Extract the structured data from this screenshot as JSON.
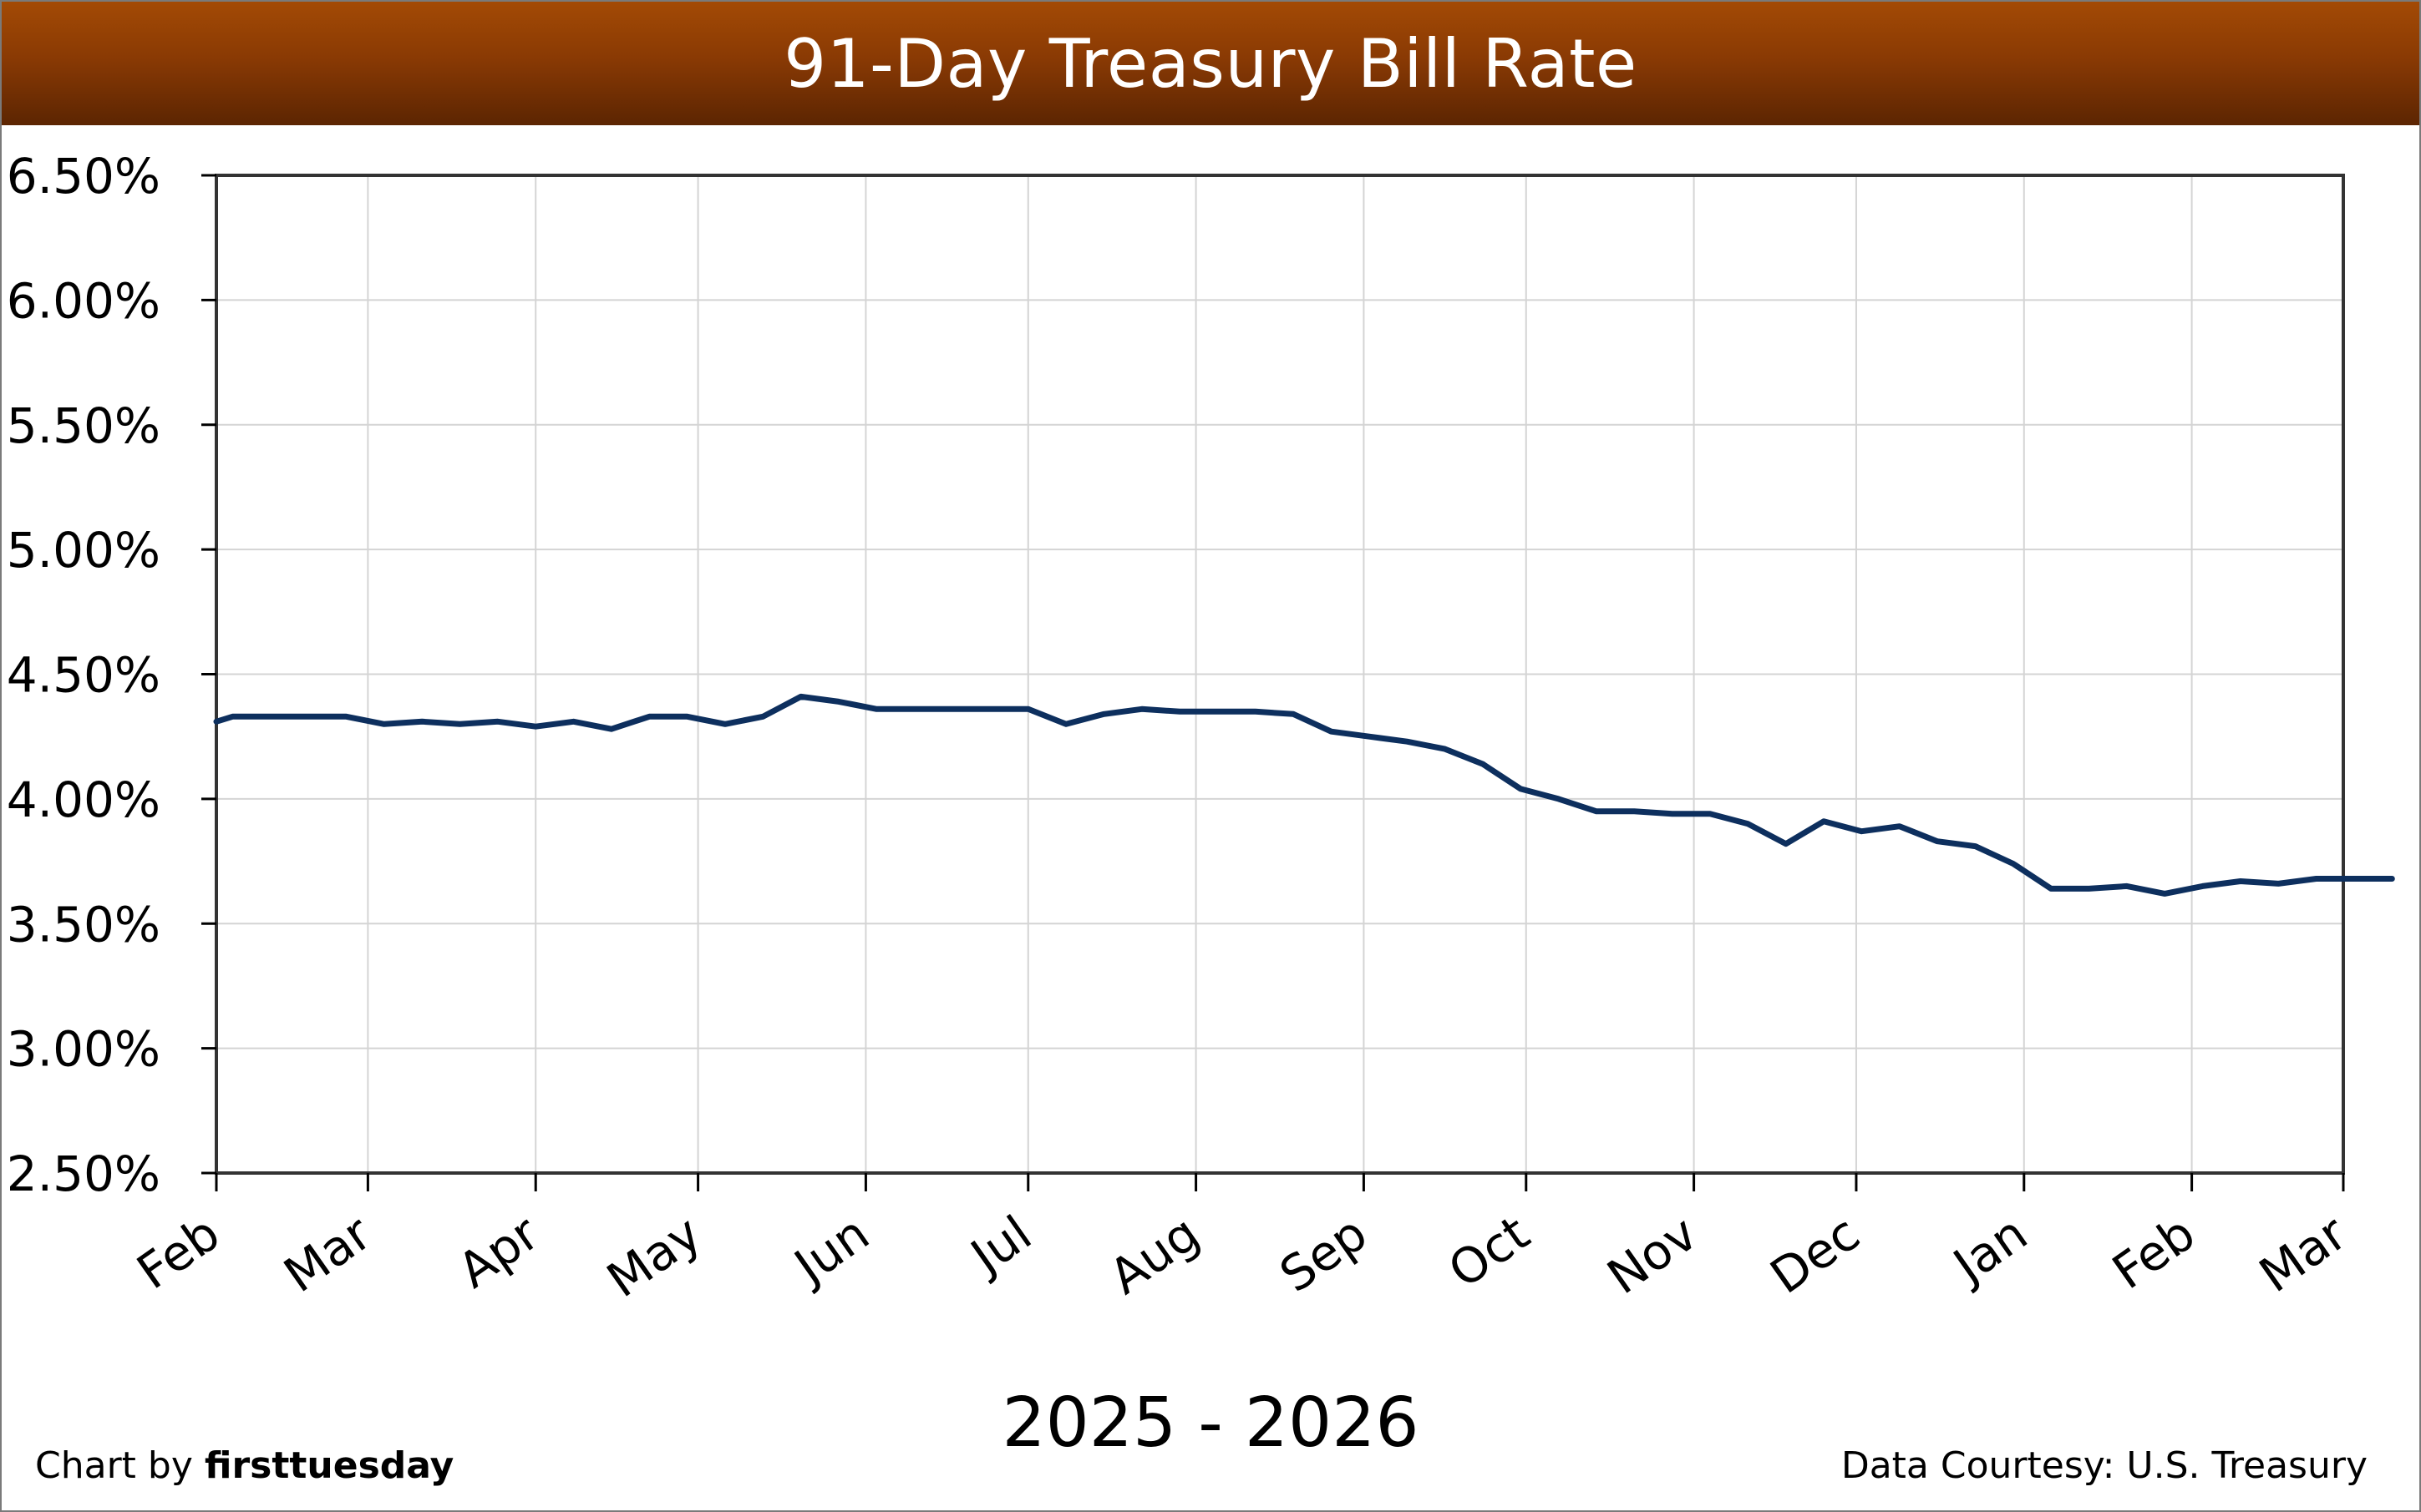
{
  "header": {
    "title": "91-Day Treasury Bill Rate"
  },
  "footer": {
    "credit_prefix": "Chart by ",
    "credit_brand": "firsttuesday",
    "source": "Data Courtesy: U.S. Treasury"
  },
  "colors": {
    "title_bar": "#8a3a04",
    "line": "#0d2f5e",
    "grid": "#d4d4d4",
    "axis": "#000000"
  },
  "chart_data": {
    "type": "line",
    "title": "91-Day Treasury Bill Rate",
    "xlabel": "2025 - 2026",
    "ylabel": "",
    "ylim": [
      2.5,
      6.5
    ],
    "y_ticks": [
      "6.50%",
      "6.00%",
      "5.50%",
      "5.00%",
      "4.50%",
      "4.00%",
      "3.50%",
      "3.00%",
      "2.50%"
    ],
    "y_tick_values": [
      6.5,
      6.0,
      5.5,
      5.0,
      4.5,
      4.0,
      3.5,
      3.0,
      2.5
    ],
    "x_ticks": [
      "Feb",
      "Mar",
      "Apr",
      "May",
      "Jun",
      "Jul",
      "Aug",
      "Sep",
      "Oct",
      "Nov",
      "Dec",
      "Jan",
      "Feb",
      "Mar"
    ],
    "x_tick_dates": [
      "2025-02-01",
      "2025-03-01",
      "2025-04-01",
      "2025-05-01",
      "2025-06-01",
      "2025-07-01",
      "2025-08-01",
      "2025-09-01",
      "2025-10-01",
      "2025-11-01",
      "2025-12-01",
      "2026-01-01",
      "2026-02-01",
      "2026-03-01"
    ],
    "xlim": [
      "2025-02-01",
      "2026-03-01"
    ],
    "grid": true,
    "series": [
      {
        "values_percent": [
          4.31,
          4.33,
          4.33,
          4.33,
          4.33,
          4.3,
          4.31,
          4.3,
          4.31,
          4.29,
          4.31,
          4.28,
          4.33,
          4.33,
          4.3,
          4.33,
          4.41,
          4.39,
          4.36,
          4.36,
          4.36,
          4.36,
          4.36,
          4.3,
          4.34,
          4.36,
          4.35,
          4.35,
          4.35,
          4.34,
          4.27,
          4.25,
          4.23,
          4.2,
          4.14,
          4.04,
          4.0,
          3.95,
          3.95,
          3.94,
          3.94,
          3.9,
          3.82,
          3.91,
          3.87,
          3.89,
          3.83,
          3.81,
          3.74,
          3.64,
          3.64,
          3.65,
          3.62,
          3.65,
          3.67,
          3.66,
          3.68,
          3.68,
          3.68
        ],
        "dates": [
          "2025-02-01",
          "2025-02-04",
          "2025-02-11",
          "2025-02-18",
          "2025-02-25",
          "2025-03-04",
          "2025-03-11",
          "2025-03-18",
          "2025-03-25",
          "2025-04-01",
          "2025-04-08",
          "2025-04-15",
          "2025-04-22",
          "2025-04-29",
          "2025-05-06",
          "2025-05-13",
          "2025-05-20",
          "2025-05-27",
          "2025-06-03",
          "2025-06-10",
          "2025-06-17",
          "2025-06-24",
          "2025-07-01",
          "2025-07-08",
          "2025-07-15",
          "2025-07-22",
          "2025-07-29",
          "2025-08-05",
          "2025-08-12",
          "2025-08-19",
          "2025-08-26",
          "2025-09-02",
          "2025-09-09",
          "2025-09-16",
          "2025-09-23",
          "2025-09-30",
          "2025-10-07",
          "2025-10-14",
          "2025-10-21",
          "2025-10-28",
          "2025-11-04",
          "2025-11-11",
          "2025-11-18",
          "2025-11-25",
          "2025-12-02",
          "2025-12-09",
          "2025-12-16",
          "2025-12-23",
          "2025-12-30",
          "2026-01-06",
          "2026-01-13",
          "2026-01-20",
          "2026-01-27",
          "2026-02-03",
          "2026-02-10",
          "2026-02-17",
          "2026-02-24",
          "2026-03-03",
          "2026-03-10"
        ]
      }
    ]
  }
}
